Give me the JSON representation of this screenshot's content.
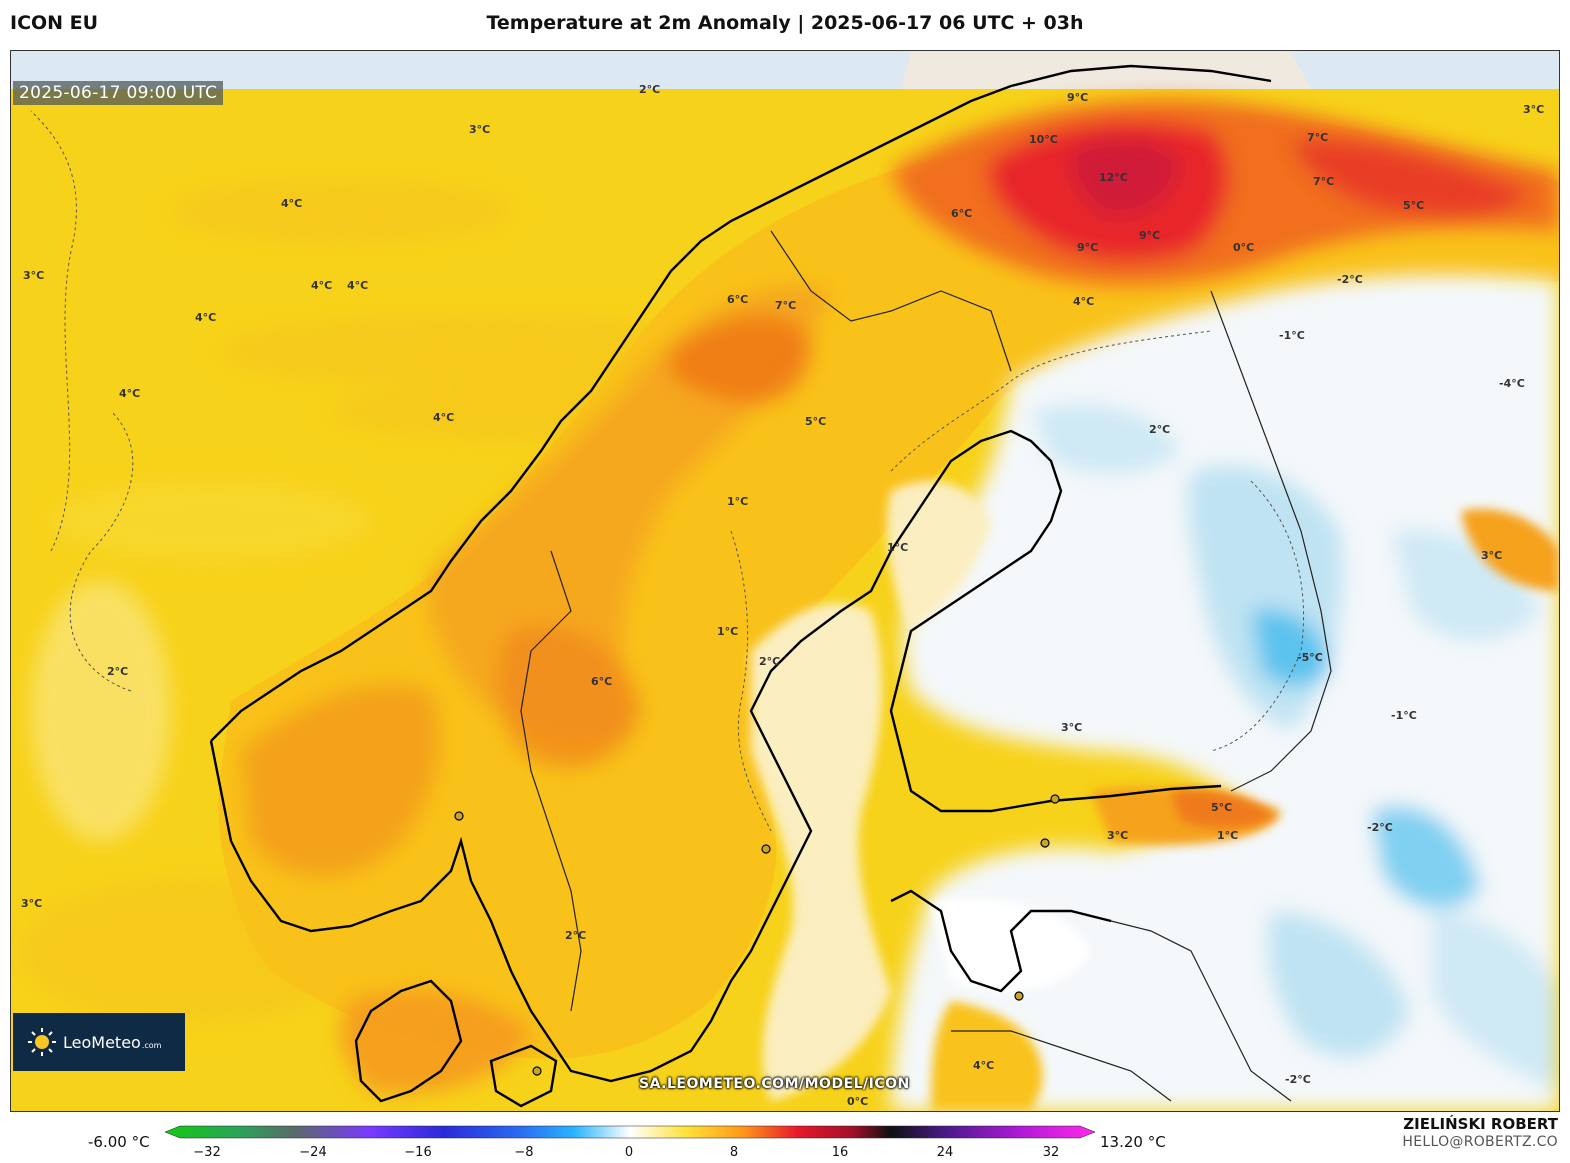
{
  "header": {
    "model": "ICON EU",
    "title": "Temperature at 2m Anomaly | 2025-06-17 06 UTC + 03h"
  },
  "map": {
    "valid_time": "2025-06-17 09:00 UTC",
    "source_url": "SA.LEOMETEO.COM/MODEL/ICON",
    "colors": {
      "sea_yellow": "#f7d21a",
      "warm_orange": "#f5a21c",
      "hot_red": "#e8282c",
      "neutral_pale": "#fbf4c8",
      "cool_white": "#f4f8fa",
      "cold_blue": "#bfe3f3",
      "colder_blue": "#5cc3ee",
      "land_border": "#000000"
    },
    "contour_labels": [
      "2°C",
      "3°C",
      "4°C",
      "4°C",
      "4°C",
      "4°C",
      "4°C",
      "3°C",
      "4°C",
      "2°C",
      "3°C",
      "3°C",
      "9°C",
      "10°C",
      "12°C",
      "9°C",
      "9°C",
      "7°C",
      "6°C",
      "7°C",
      "7°C",
      "6°C",
      "5°C",
      "5°C",
      "4°C",
      "1°C",
      "1°C",
      "1°C",
      "2°C",
      "6°C",
      "0°C",
      "-1°C",
      "-2°C",
      "-1°C",
      "-2°C",
      "-5°C",
      "2°C",
      "1°C",
      "5°C",
      "3°C",
      "4°C",
      "-2°C",
      "3°C",
      "2°C",
      "3°C",
      "0°C",
      "-4°C"
    ]
  },
  "logo": {
    "icon": "sun-icon",
    "brand": "LeoMeteo",
    "suffix": ".com"
  },
  "colorbar": {
    "min_label": "-6.00 °C",
    "max_label": "13.20 °C",
    "ticks": [
      "−32",
      "−24",
      "−16",
      "−8",
      "0",
      "8",
      "16",
      "24",
      "32"
    ]
  },
  "credits": {
    "author": "ZIELIŃSKI ROBERT",
    "email": "HELLO@ROBERTZ.CO"
  }
}
